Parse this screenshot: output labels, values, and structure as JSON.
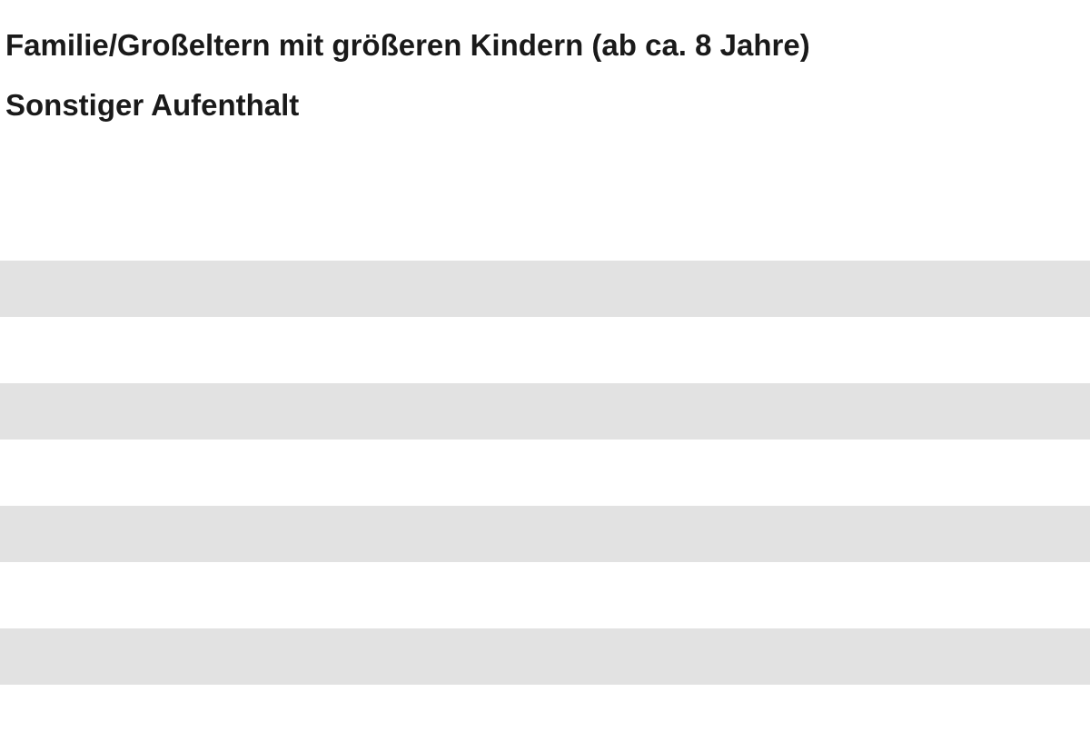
{
  "options": [
    {
      "label": "Familie/Großeltern mit größeren Kindern (ab ca. 8 Jahre)"
    },
    {
      "label": "Sonstiger Aufenthalt"
    }
  ],
  "colors": {
    "text": "#1a1a1a",
    "background": "#ffffff",
    "stripe": "#e2e2e2"
  }
}
